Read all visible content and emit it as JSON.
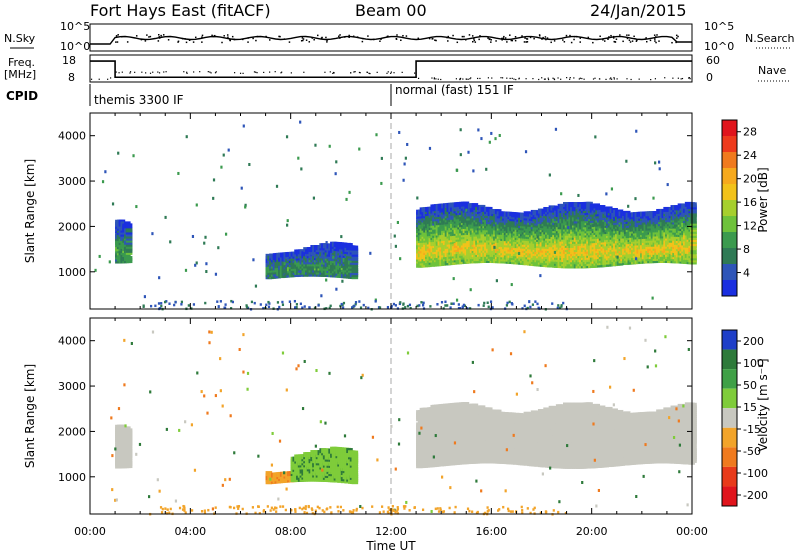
{
  "header": {
    "station": "Fort Hays East (fitACF)",
    "beam": "Beam 00",
    "date": "24/Jan/2015"
  },
  "aux": {
    "nsky_label": "N.Sky",
    "nsearch_label": "N.Search",
    "freq_label": "Freq.",
    "freq_unit": "[MHz]",
    "nave_label": "Nave",
    "cpid_label": "CPID",
    "noise_ticks": [
      "10^5",
      "10^0"
    ],
    "freq_ticks": [
      "18",
      "8"
    ],
    "nave_ticks": [
      "60",
      "0"
    ],
    "cpid_segments": [
      {
        "label": "themis 3300 IF",
        "start_hr": 0
      },
      {
        "label": "normal (fast) 151 IF",
        "start_hr": 12
      }
    ],
    "freq_steps": [
      {
        "start_hr": 0,
        "end_hr": 1,
        "mhz": 16.5
      },
      {
        "start_hr": 1,
        "end_hr": 13,
        "mhz": 10.5
      },
      {
        "start_hr": 13,
        "end_hr": 24,
        "mhz": 16.5
      }
    ]
  },
  "chart_data": [
    {
      "type": "heatmap",
      "panel": "power",
      "ylabel": "Slant Range [km]",
      "xlabel": "Time UT",
      "x_ticks": [
        "00:00",
        "04:00",
        "08:00",
        "12:00",
        "16:00",
        "20:00",
        "00:00"
      ],
      "xlim_hr": [
        0,
        24
      ],
      "y_ticks": [
        1000,
        2000,
        3000,
        4000
      ],
      "ylim_km": [
        180,
        4500
      ],
      "colorbar": {
        "label": "Power [dB]",
        "ticks": [
          4,
          8,
          12,
          16,
          20,
          24,
          28
        ],
        "range": [
          0,
          30
        ],
        "colors": [
          "#1a2fe0",
          "#2e55b8",
          "#2f7a55",
          "#3b9a4e",
          "#6ec23b",
          "#a6cf2e",
          "#f2c21a",
          "#f6a91d",
          "#f07a1e",
          "#ee3a1c",
          "#e0141c"
        ]
      },
      "regions": [
        {
          "t": [
            1.0,
            1.5
          ],
          "r": [
            1200,
            2100
          ],
          "p": 10
        },
        {
          "t": [
            7.0,
            10.5
          ],
          "r": [
            900,
            1500
          ],
          "p": 8
        },
        {
          "t": [
            13.0,
            24.0
          ],
          "r": [
            1200,
            2400
          ],
          "p": 18
        }
      ]
    },
    {
      "type": "heatmap",
      "panel": "velocity",
      "ylabel": "Slant Range [km]",
      "xlabel": "Time UT",
      "x_ticks": [
        "00:00",
        "04:00",
        "08:00",
        "12:00",
        "16:00",
        "20:00",
        "00:00"
      ],
      "xlim_hr": [
        0,
        24
      ],
      "y_ticks": [
        1000,
        2000,
        3000,
        4000
      ],
      "ylim_km": [
        180,
        4500
      ],
      "colorbar": {
        "label": "Velocity [m s⁻¹]",
        "ticks": [
          200,
          100,
          50,
          15,
          -15,
          -50,
          -100,
          -200
        ],
        "colors": [
          "#1f3fc8",
          "#2e7a3a",
          "#3fa046",
          "#7fcc3a",
          "#c8c8c0",
          "#f2a42a",
          "#ef7a1e",
          "#e83a1a",
          "#e0141c"
        ]
      },
      "regions": [
        {
          "t": [
            1.0,
            1.5
          ],
          "r": [
            1200,
            2100
          ],
          "v": 0
        },
        {
          "t": [
            7.0,
            8.0
          ],
          "r": [
            900,
            1200
          ],
          "v": -40
        },
        {
          "t": [
            8.0,
            10.5
          ],
          "r": [
            900,
            1500
          ],
          "v": 40
        },
        {
          "t": [
            13.0,
            24.0
          ],
          "r": [
            1300,
            2500
          ],
          "v": 0
        }
      ]
    }
  ]
}
